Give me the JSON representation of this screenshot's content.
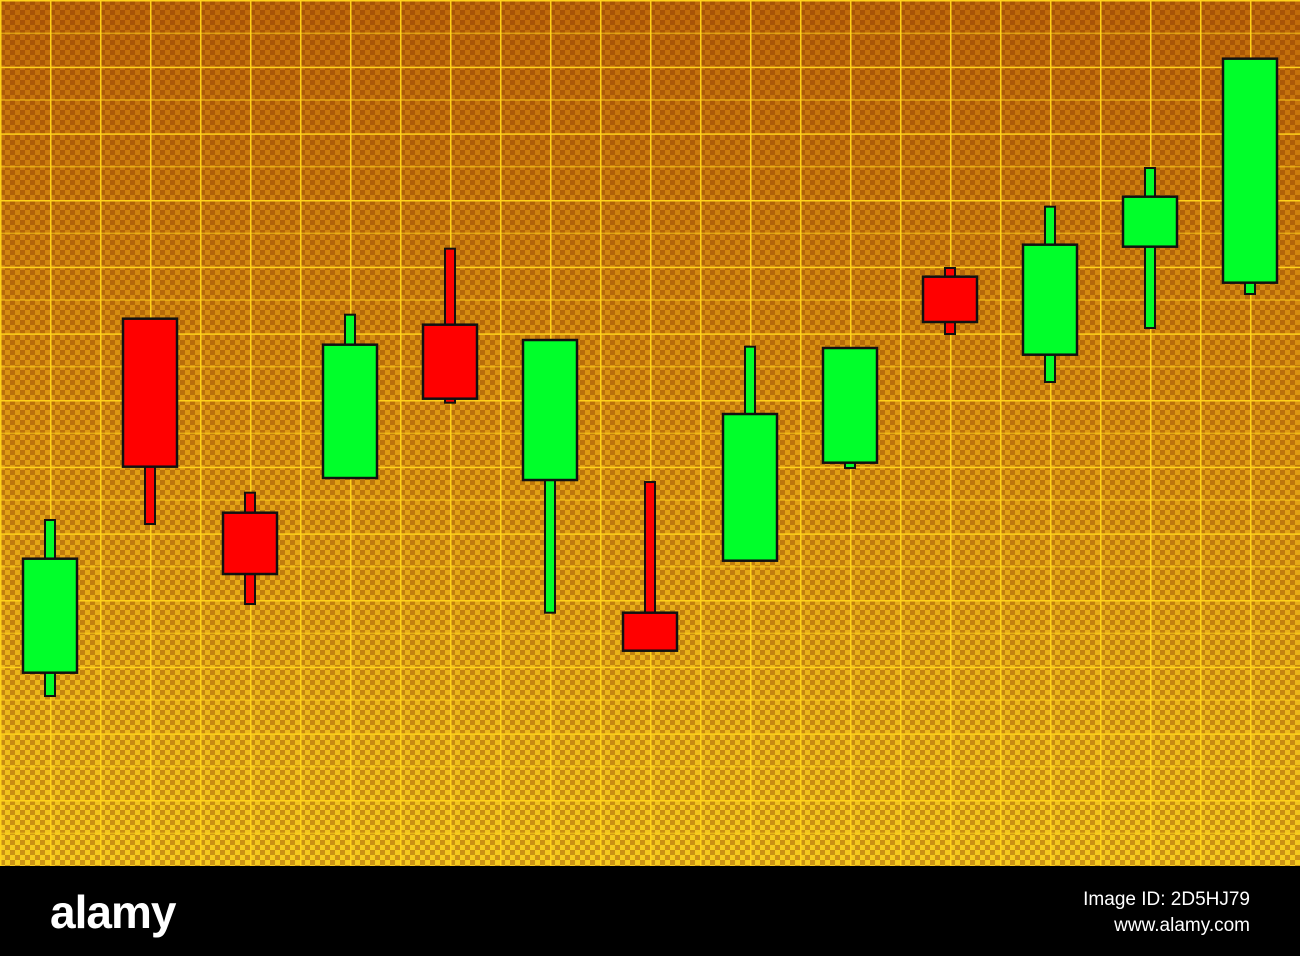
{
  "chart_data": {
    "type": "candlestick",
    "ylim": [
      0,
      13
    ],
    "up_color": "#00ff2a",
    "down_color": "#ff0000",
    "open": [
      2.91,
      8.22,
      5.31,
      5.83,
      8.13,
      5.8,
      3.81,
      4.59,
      6.06,
      8.85,
      7.68,
      9.3,
      8.76
    ],
    "high": [
      5.2,
      8.22,
      5.61,
      8.28,
      9.27,
      7.9,
      5.77,
      7.8,
      7.78,
      8.98,
      9.9,
      10.48,
      12.12
    ],
    "low": [
      2.56,
      5.14,
      3.94,
      5.83,
      6.96,
      3.81,
      3.24,
      4.59,
      5.98,
      7.99,
      7.27,
      8.08,
      8.59
    ],
    "close": [
      4.62,
      6.0,
      4.39,
      7.83,
      7.02,
      7.9,
      3.24,
      6.79,
      7.78,
      8.17,
      9.33,
      10.05,
      12.12
    ]
  },
  "footer": {
    "brand": "alamy",
    "image_id": "Image ID: 2D5HJ79",
    "url": "www.alamy.com"
  }
}
